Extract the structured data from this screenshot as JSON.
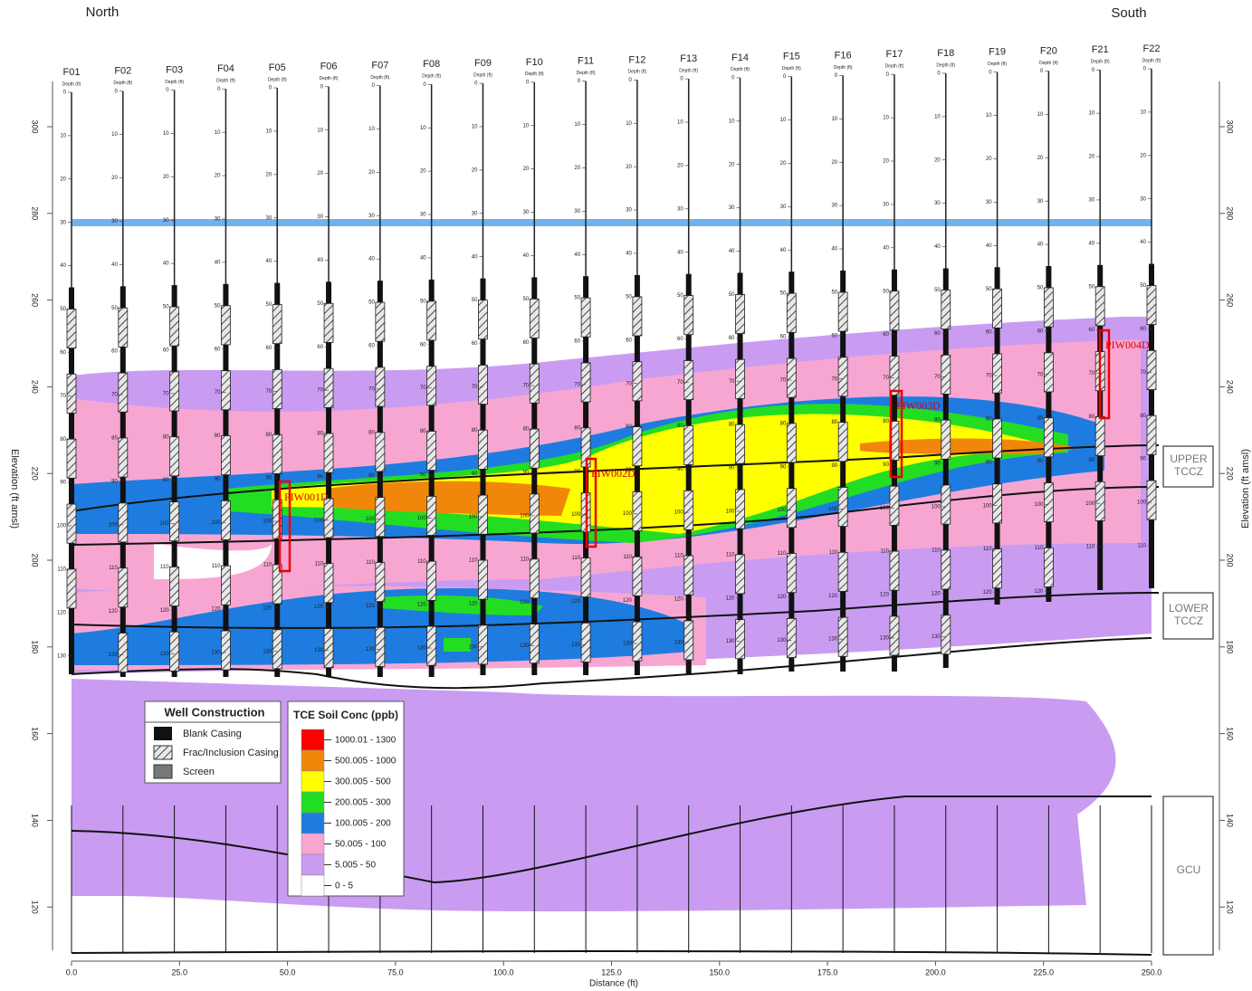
{
  "header": {
    "left": "North",
    "right": "South"
  },
  "wells": [
    "F01",
    "F02",
    "F03",
    "F04",
    "F05",
    "F06",
    "F07",
    "F08",
    "F09",
    "F10",
    "F11",
    "F12",
    "F13",
    "F14",
    "F15",
    "F16",
    "F17",
    "F18",
    "F19",
    "F20",
    "F21",
    "F22"
  ],
  "well_depth_label": "Depth (ft)",
  "depth_ticks": [
    0,
    10,
    20,
    30,
    40,
    50,
    60,
    70,
    80,
    90,
    100,
    110,
    120,
    130
  ],
  "elevation_axis": {
    "label": "Elevation (ft amsl)",
    "ticks": [
      300,
      280,
      260,
      240,
      220,
      200,
      180,
      160,
      140,
      120
    ]
  },
  "distance_axis": {
    "label": "Distance (ft)",
    "ticks": [
      {
        "value": 0,
        "label": "0.0"
      },
      {
        "value": 25,
        "label": "25.0"
      },
      {
        "value": 50,
        "label": "50.0"
      },
      {
        "value": 75,
        "label": "75.0"
      },
      {
        "value": 100,
        "label": "100.0"
      },
      {
        "value": 125,
        "label": "125.0"
      },
      {
        "value": 150,
        "label": "150.0"
      },
      {
        "value": 175,
        "label": "175.0"
      },
      {
        "value": 200,
        "label": "200.0"
      },
      {
        "value": 225,
        "label": "225.0"
      },
      {
        "value": 250,
        "label": "250.0"
      }
    ]
  },
  "injection_wells": [
    "PIW001D",
    "PIW002D",
    "PIW003D",
    "PIW004D"
  ],
  "zones": [
    {
      "lines": [
        "UPPER",
        "TCCZ"
      ]
    },
    {
      "lines": [
        "LOWER",
        "TCCZ"
      ]
    },
    {
      "lines": [
        "GCU"
      ]
    }
  ],
  "legend_construction": {
    "title": "Well Construction",
    "items": [
      "Blank Casing",
      "Frac/Inclusion Casing",
      "Screen"
    ]
  },
  "legend_conc": {
    "title": "TCE Soil Conc (ppb)",
    "items": [
      {
        "label": "1000.01 - 1300",
        "color": "#ff0000"
      },
      {
        "label": "500.005 - 1000",
        "color": "#f0870a"
      },
      {
        "label": "300.005 - 500",
        "color": "#ffff00"
      },
      {
        "label": "200.005 - 300",
        "color": "#22dd22"
      },
      {
        "label": "100.005 - 200",
        "color": "#1e7ce0"
      },
      {
        "label": "50.005 - 100",
        "color": "#f7a6d2"
      },
      {
        "label": "5.005 - 50",
        "color": "#c99cf2"
      },
      {
        "label": "0 - 5",
        "color": "#ffffff"
      }
    ]
  }
}
